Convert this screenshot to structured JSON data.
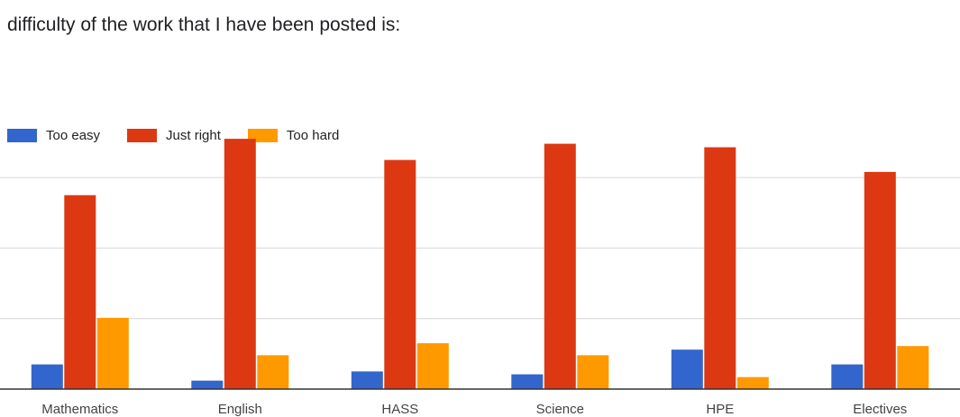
{
  "chart_data": {
    "type": "bar",
    "title": "difficulty of the work that I have been posted is:",
    "categories": [
      "Mathematics",
      "English",
      "HASS",
      "Science",
      "HPE",
      "Electives"
    ],
    "series": [
      {
        "name": "Too easy",
        "color": "#3366cc",
        "values": [
          3.5,
          1.2,
          2.5,
          2.1,
          5.6,
          3.5
        ]
      },
      {
        "name": "Just right",
        "color": "#dc3912",
        "values": [
          27.5,
          35.5,
          32.5,
          34.8,
          34.3,
          30.8
        ]
      },
      {
        "name": "Too hard",
        "color": "#ff9900",
        "values": [
          10.1,
          4.8,
          6.5,
          4.8,
          1.7,
          6.1
        ]
      }
    ],
    "ylim": [
      0,
      35
    ],
    "grid": true,
    "legend_position": "top-left"
  }
}
